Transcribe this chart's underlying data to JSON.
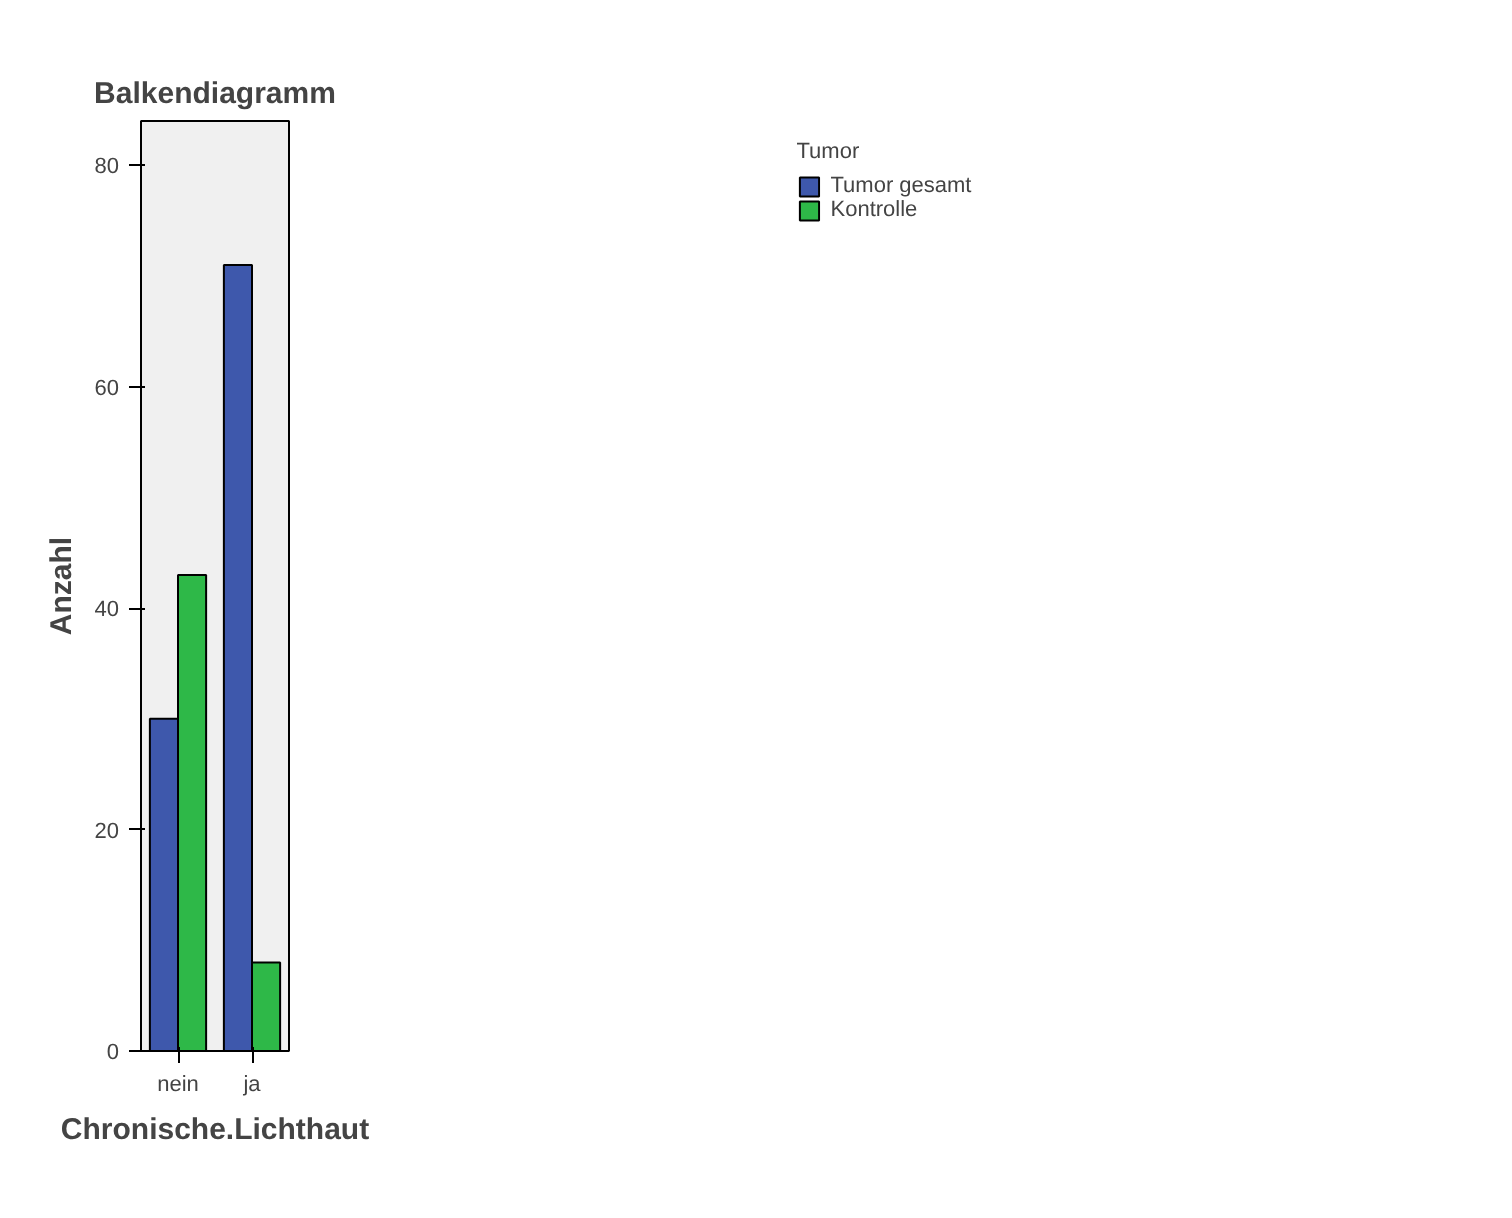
{
  "chart_data": {
    "type": "bar",
    "title": "Balkendiagramm",
    "xlabel": "Chronische.Lichthaut",
    "ylabel": "Anzahl",
    "legend_title": "Tumor",
    "categories": [
      "nein",
      "ja"
    ],
    "series": [
      {
        "name": "Tumor gesamt",
        "color": "#3e58ac",
        "values": [
          30,
          71
        ]
      },
      {
        "name": "Kontrolle",
        "color": "#2eb848",
        "values": [
          43,
          8
        ]
      }
    ],
    "ylim": [
      0,
      84
    ],
    "yticks": [
      0,
      20,
      40,
      60,
      80
    ],
    "grid": false,
    "legend": "top right"
  }
}
